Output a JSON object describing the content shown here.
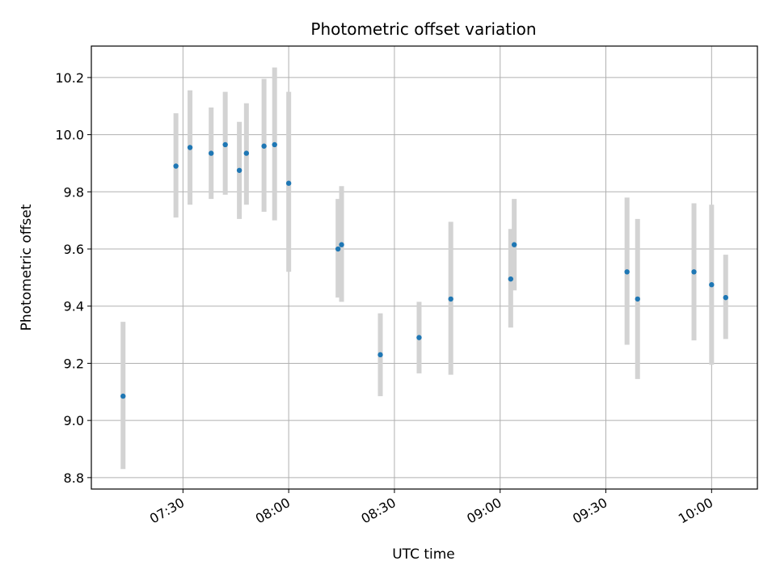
{
  "chart_data": {
    "type": "scatter",
    "title": "Photometric offset variation",
    "xlabel": "UTC time",
    "ylabel": "Photometric offset",
    "xlim": [
      "07:04",
      "10:13"
    ],
    "ylim": [
      8.76,
      10.31
    ],
    "grid": true,
    "x_ticks": [
      "07:30",
      "08:00",
      "08:30",
      "09:00",
      "09:30",
      "10:00"
    ],
    "y_ticks": [
      8.8,
      9.0,
      9.2,
      9.4,
      9.6,
      9.8,
      10.0,
      10.2
    ],
    "point_color": "#1f77b4",
    "errorbar_color": "#d3d3d3",
    "points": [
      {
        "x": "07:13",
        "y": 9.085,
        "y_low": 8.83,
        "y_high": 9.345
      },
      {
        "x": "07:28",
        "y": 9.89,
        "y_low": 9.71,
        "y_high": 10.075
      },
      {
        "x": "07:32",
        "y": 9.955,
        "y_low": 9.755,
        "y_high": 10.155
      },
      {
        "x": "07:38",
        "y": 9.935,
        "y_low": 9.775,
        "y_high": 10.095
      },
      {
        "x": "07:42",
        "y": 9.965,
        "y_low": 9.79,
        "y_high": 10.15
      },
      {
        "x": "07:46",
        "y": 9.875,
        "y_low": 9.705,
        "y_high": 10.045
      },
      {
        "x": "07:48",
        "y": 9.935,
        "y_low": 9.755,
        "y_high": 10.11
      },
      {
        "x": "07:53",
        "y": 9.96,
        "y_low": 9.73,
        "y_high": 10.195
      },
      {
        "x": "07:56",
        "y": 9.965,
        "y_low": 9.7,
        "y_high": 10.235
      },
      {
        "x": "08:00",
        "y": 9.83,
        "y_low": 9.52,
        "y_high": 10.15
      },
      {
        "x": "08:14",
        "y": 9.6,
        "y_low": 9.43,
        "y_high": 9.775
      },
      {
        "x": "08:15",
        "y": 9.615,
        "y_low": 9.415,
        "y_high": 9.82
      },
      {
        "x": "08:26",
        "y": 9.23,
        "y_low": 9.085,
        "y_high": 9.375
      },
      {
        "x": "08:37",
        "y": 9.29,
        "y_low": 9.165,
        "y_high": 9.415
      },
      {
        "x": "08:46",
        "y": 9.425,
        "y_low": 9.16,
        "y_high": 9.695
      },
      {
        "x": "09:03",
        "y": 9.495,
        "y_low": 9.325,
        "y_high": 9.67
      },
      {
        "x": "09:04",
        "y": 9.615,
        "y_low": 9.455,
        "y_high": 9.775
      },
      {
        "x": "09:36",
        "y": 9.52,
        "y_low": 9.265,
        "y_high": 9.78
      },
      {
        "x": "09:39",
        "y": 9.425,
        "y_low": 9.145,
        "y_high": 9.705
      },
      {
        "x": "09:55",
        "y": 9.52,
        "y_low": 9.28,
        "y_high": 9.76
      },
      {
        "x": "10:00",
        "y": 9.475,
        "y_low": 9.195,
        "y_high": 9.755
      },
      {
        "x": "10:04",
        "y": 9.43,
        "y_low": 9.285,
        "y_high": 9.58
      }
    ]
  }
}
